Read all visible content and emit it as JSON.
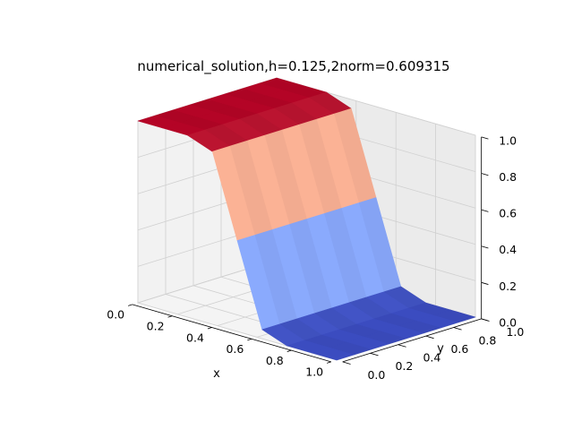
{
  "chart_data": {
    "type": "surface3d",
    "title": "numerical_solution,h=0.125,2norm=0.609315",
    "xlabel": "x",
    "ylabel": "y",
    "zlabel": "",
    "xlim": [
      0,
      1
    ],
    "ylim": [
      0,
      1
    ],
    "zlim": [
      0,
      1
    ],
    "x_ticks": [
      "0.0",
      "0.2",
      "0.4",
      "0.6",
      "0.8",
      "1.0"
    ],
    "y_ticks": [
      "0.0",
      "0.2",
      "0.4",
      "0.6",
      "0.8",
      "1.0"
    ],
    "z_ticks": [
      "0.0",
      "0.2",
      "0.4",
      "0.6",
      "0.8",
      "1.0"
    ],
    "grid": true,
    "colormap": "coolwarm",
    "x": [
      0,
      0.125,
      0.25,
      0.375,
      0.5,
      0.625,
      0.75,
      0.875,
      1.0
    ],
    "y": [
      0,
      0.125,
      0.25,
      0.375,
      0.5,
      0.625,
      0.75,
      0.875,
      1.0
    ],
    "z_profile_along_x": [
      1.0,
      1.0,
      1.0,
      0.95,
      0.5,
      0.05,
      0.0,
      0.0,
      0.0
    ],
    "colors": {
      "hot": "#b40426",
      "warm": "#f7a889",
      "cool": "#7b9ff9",
      "cold": "#3b4cc0"
    }
  }
}
